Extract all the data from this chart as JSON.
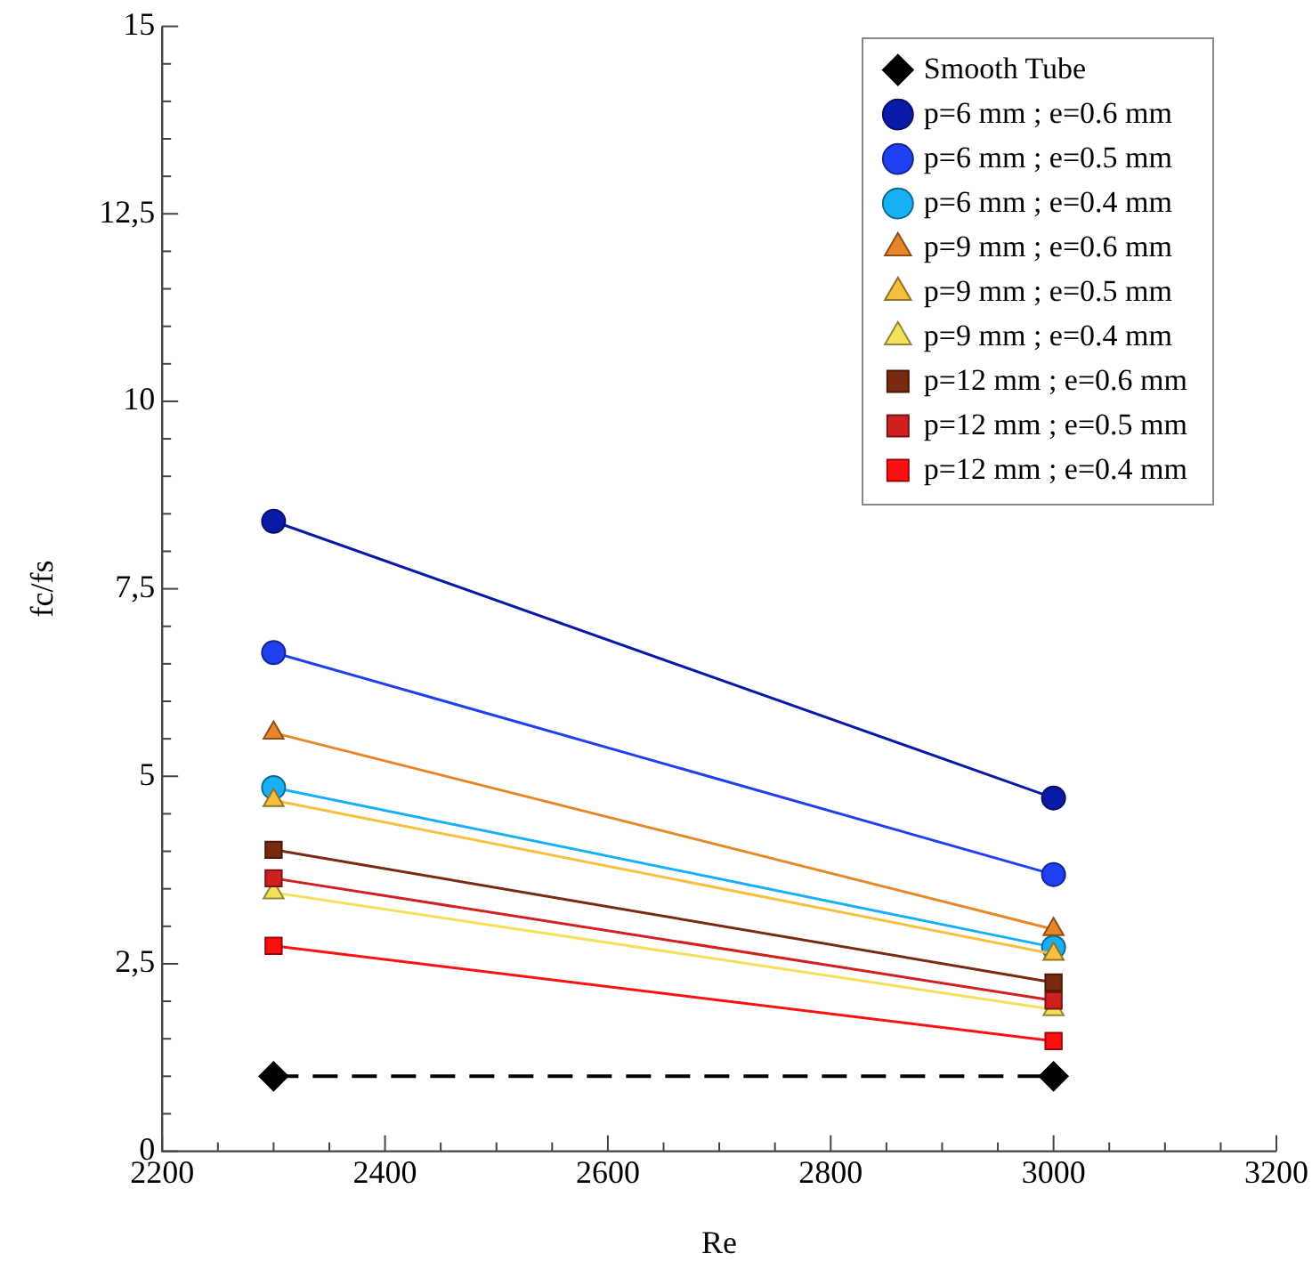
{
  "chart_data": {
    "type": "line",
    "xlabel": "Re",
    "ylabel": "fc/fs",
    "x": [
      2300,
      3000
    ],
    "xlim": [
      2200,
      3200
    ],
    "xticks": [
      2200,
      {
        "value": 2250,
        "label": null
      },
      {
        "value": 2300,
        "label": null
      },
      {
        "value": 2350,
        "label": null
      },
      2400,
      {
        "value": 2450,
        "label": null
      },
      {
        "value": 2500,
        "label": null
      },
      {
        "value": 2550,
        "label": null
      },
      2600,
      {
        "value": 2650,
        "label": null
      },
      {
        "value": 2700,
        "label": null
      },
      {
        "value": 2750,
        "label": null
      },
      2800,
      {
        "value": 2850,
        "label": null
      },
      {
        "value": 2900,
        "label": null
      },
      {
        "value": 2950,
        "label": null
      },
      3000,
      {
        "value": 3050,
        "label": null
      },
      {
        "value": 3100,
        "label": null
      },
      {
        "value": 3150,
        "label": null
      },
      3200
    ],
    "ylim": [
      0,
      15
    ],
    "yticks": [
      0,
      {
        "value": 0.5,
        "label": null
      },
      {
        "value": 1,
        "label": null
      },
      {
        "value": 1.5,
        "label": null
      },
      {
        "value": 2,
        "label": null
      },
      {
        "value": 2.5,
        "label": "2,5"
      },
      {
        "value": 3,
        "label": null
      },
      {
        "value": 3.5,
        "label": null
      },
      {
        "value": 4,
        "label": null
      },
      {
        "value": 4.5,
        "label": null
      },
      5,
      {
        "value": 5.5,
        "label": null
      },
      {
        "value": 6,
        "label": null
      },
      {
        "value": 6.5,
        "label": null
      },
      {
        "value": 7,
        "label": null
      },
      {
        "value": 7.5,
        "label": "7,5"
      },
      {
        "value": 8,
        "label": null
      },
      {
        "value": 8.5,
        "label": null
      },
      {
        "value": 9,
        "label": null
      },
      {
        "value": 9.5,
        "label": null
      },
      10,
      {
        "value": 10.5,
        "label": null
      },
      {
        "value": 11,
        "label": null
      },
      {
        "value": 11.5,
        "label": null
      },
      {
        "value": 12,
        "label": null
      },
      {
        "value": 12.5,
        "label": "12,5"
      },
      {
        "value": 13,
        "label": null
      },
      {
        "value": 13.5,
        "label": null
      },
      {
        "value": 14,
        "label": null
      },
      {
        "value": 14.5,
        "label": null
      },
      15
    ],
    "grid": false,
    "legend": "top right",
    "series": [
      {
        "name": "Smooth Tube",
        "color": "#000000",
        "marker": "diamond",
        "line_style": "dashed",
        "values": [
          1.0,
          1.0
        ]
      },
      {
        "name": "p=6 mm ; e=0.6 mm",
        "color": "#0a1aa8",
        "marker": "circle",
        "values": [
          8.4,
          4.71
        ]
      },
      {
        "name": "p=6 mm ; e=0.5 mm",
        "color": "#1f3ff0",
        "marker": "circle",
        "values": [
          6.65,
          3.69
        ]
      },
      {
        "name": "p=6 mm ; e=0.4 mm",
        "color": "#18b0f5",
        "marker": "circle",
        "values": [
          4.85,
          2.72
        ]
      },
      {
        "name": "p=9 mm ; e=0.6 mm",
        "color": "#e8862a",
        "marker": "triangle",
        "values": [
          5.58,
          2.96
        ]
      },
      {
        "name": "p=9 mm ; e=0.5 mm",
        "color": "#f5c040",
        "marker": "triangle",
        "values": [
          4.68,
          2.63
        ]
      },
      {
        "name": "p=9 mm ; e=0.4 mm",
        "color": "#f5e05a",
        "marker": "triangle",
        "values": [
          3.45,
          1.89
        ]
      },
      {
        "name": "p=12 mm ; e=0.6 mm",
        "color": "#7a2a10",
        "marker": "square",
        "values": [
          4.02,
          2.25
        ]
      },
      {
        "name": "p=12 mm ; e=0.5 mm",
        "color": "#d02020",
        "marker": "square",
        "values": [
          3.64,
          2.01
        ]
      },
      {
        "name": "p=12 mm ; e=0.4 mm",
        "color": "#ff1010",
        "marker": "square",
        "values": [
          2.74,
          1.47
        ]
      }
    ]
  }
}
